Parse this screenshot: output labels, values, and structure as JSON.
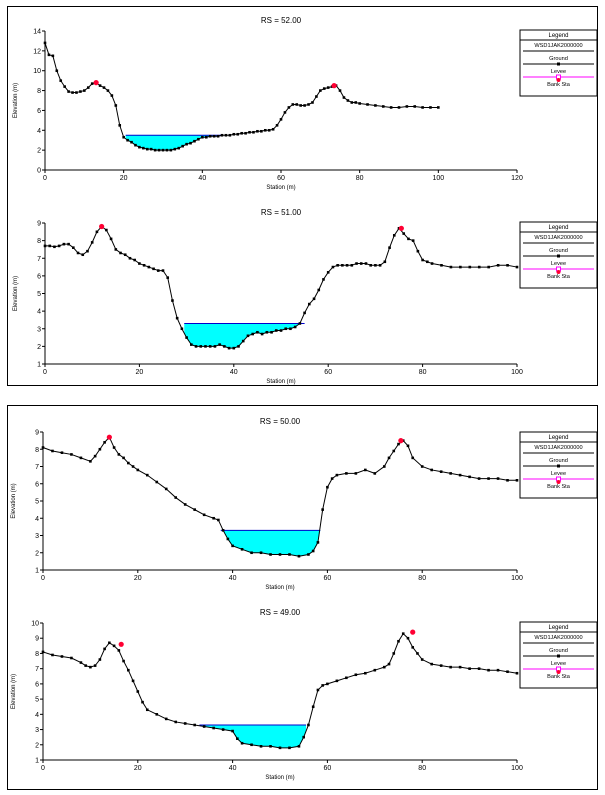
{
  "chart_data": [
    {
      "type": "line",
      "title": "RS = 52.00",
      "xlabel": "Station (m)",
      "ylabel": "Elevation (m)",
      "xlim": [
        0,
        120
      ],
      "ylim": [
        0,
        14
      ],
      "xticks": [
        0,
        20,
        40,
        60,
        80,
        100,
        120
      ],
      "yticks": [
        0,
        2,
        4,
        6,
        8,
        10,
        12,
        14
      ],
      "ground": {
        "x": [
          0,
          1,
          2,
          3,
          4,
          5,
          6,
          7,
          8,
          9,
          10,
          11,
          12,
          13,
          14,
          15,
          16,
          17,
          18,
          19,
          20,
          21,
          22,
          23,
          24,
          25,
          26,
          27,
          28,
          29,
          30,
          31,
          32,
          33,
          34,
          35,
          36,
          37,
          38,
          39,
          40,
          41,
          42,
          43,
          44,
          45,
          46,
          47,
          48,
          49,
          50,
          51,
          52,
          53,
          54,
          55,
          56,
          57,
          58,
          59,
          60,
          61,
          62,
          63,
          64,
          65,
          66,
          67,
          68,
          69,
          70,
          71,
          72,
          73,
          74,
          75,
          76,
          77,
          78,
          79,
          80,
          82,
          84,
          86,
          88,
          90,
          92,
          94,
          96,
          98,
          100
        ],
        "y": [
          12.8,
          11.6,
          11.5,
          10.0,
          9.0,
          8.4,
          7.9,
          7.8,
          7.8,
          7.9,
          8.0,
          8.3,
          8.7,
          8.8,
          8.5,
          8.3,
          8.0,
          7.5,
          6.5,
          4.5,
          3.3,
          3.0,
          2.8,
          2.5,
          2.3,
          2.2,
          2.1,
          2.1,
          2.0,
          2.0,
          2.0,
          2.0,
          2.0,
          2.1,
          2.2,
          2.4,
          2.6,
          2.7,
          2.9,
          3.1,
          3.3,
          3.3,
          3.4,
          3.4,
          3.4,
          3.5,
          3.5,
          3.5,
          3.6,
          3.6,
          3.7,
          3.7,
          3.8,
          3.8,
          3.9,
          3.9,
          4.0,
          4.0,
          4.1,
          4.5,
          5.1,
          5.8,
          6.3,
          6.6,
          6.6,
          6.5,
          6.5,
          6.6,
          6.8,
          7.4,
          8.0,
          8.2,
          8.3,
          8.4,
          8.5,
          8.0,
          7.3,
          7.0,
          6.8,
          6.8,
          6.7,
          6.6,
          6.5,
          6.4,
          6.3,
          6.3,
          6.4,
          6.4,
          6.3,
          6.3,
          6.3
        ]
      },
      "water_surface": {
        "elevation": 3.5,
        "from": 20.5,
        "to": 45
      },
      "bank_stations": [
        [
          13,
          8.8
        ],
        [
          73.5,
          8.5
        ]
      ],
      "legend": {
        "title": "Legend",
        "items": [
          {
            "label": "WSD1JAK2000000",
            "type": "ws"
          },
          {
            "label": "Ground",
            "type": "ground"
          },
          {
            "label": "Levee",
            "type": "levee"
          },
          {
            "label": "Bank Sta",
            "type": "bank"
          }
        ]
      }
    },
    {
      "type": "line",
      "title": "RS = 51.00",
      "xlabel": "Station (m)",
      "ylabel": "Elevation (m)",
      "xlim": [
        0,
        100
      ],
      "ylim": [
        1,
        9
      ],
      "xticks": [
        0,
        20,
        40,
        60,
        80,
        100
      ],
      "yticks": [
        1,
        2,
        3,
        4,
        5,
        6,
        7,
        8,
        9
      ],
      "ground": {
        "x": [
          0,
          1,
          2,
          3,
          4,
          5,
          6,
          7,
          8,
          9,
          10,
          11,
          12,
          13,
          14,
          15,
          16,
          17,
          18,
          19,
          20,
          21,
          22,
          23,
          24,
          25,
          26,
          27,
          28,
          29,
          30,
          31,
          32,
          33,
          34,
          35,
          36,
          37,
          38,
          39,
          40,
          41,
          42,
          43,
          44,
          45,
          46,
          47,
          48,
          49,
          50,
          51,
          52,
          53,
          54,
          55,
          56,
          57,
          58,
          59,
          60,
          61,
          62,
          63,
          64,
          65,
          66,
          67,
          68,
          69,
          70,
          71,
          72,
          73,
          74,
          75,
          76,
          77,
          78,
          79,
          80,
          81,
          82,
          84,
          86,
          88,
          90,
          92,
          94,
          96,
          98,
          100
        ],
        "y": [
          7.7,
          7.7,
          7.65,
          7.7,
          7.8,
          7.8,
          7.6,
          7.3,
          7.2,
          7.4,
          7.9,
          8.5,
          8.8,
          8.6,
          8.1,
          7.5,
          7.3,
          7.2,
          7.0,
          6.9,
          6.7,
          6.6,
          6.5,
          6.4,
          6.3,
          6.3,
          5.9,
          4.6,
          3.6,
          3.0,
          2.5,
          2.1,
          2.0,
          2.0,
          2.0,
          2.0,
          2.0,
          2.1,
          2.0,
          1.9,
          1.9,
          2.0,
          2.3,
          2.6,
          2.7,
          2.8,
          2.7,
          2.8,
          2.8,
          2.9,
          2.9,
          3.0,
          3.0,
          3.1,
          3.3,
          3.9,
          4.4,
          4.7,
          5.2,
          5.8,
          6.2,
          6.5,
          6.6,
          6.6,
          6.6,
          6.6,
          6.7,
          6.7,
          6.7,
          6.6,
          6.6,
          6.6,
          6.8,
          7.6,
          8.3,
          8.7,
          8.4,
          8.1,
          8.0,
          7.4,
          6.9,
          6.8,
          6.7,
          6.6,
          6.5,
          6.5,
          6.5,
          6.5,
          6.5,
          6.6,
          6.6,
          6.5
        ]
      },
      "water_surface": {
        "elevation": 3.3,
        "from": 29.5,
        "to": 55
      },
      "bank_stations": [
        [
          12,
          8.8
        ],
        [
          75.5,
          8.7
        ]
      ],
      "legend": {
        "title": "Legend",
        "items": [
          {
            "label": "WSD1JAK2000000",
            "type": "ws"
          },
          {
            "label": "Ground",
            "type": "ground"
          },
          {
            "label": "Levee",
            "type": "levee"
          },
          {
            "label": "Bank Sta",
            "type": "bank"
          }
        ]
      }
    },
    {
      "type": "line",
      "title": "RS = 50.00",
      "xlabel": "Station (m)",
      "ylabel": "Elevation (m)",
      "xlim": [
        0,
        100
      ],
      "ylim": [
        1,
        9
      ],
      "xticks": [
        0,
        20,
        40,
        60,
        80,
        100
      ],
      "yticks": [
        1,
        2,
        3,
        4,
        5,
        6,
        7,
        8,
        9
      ],
      "ground": {
        "x": [
          0,
          2,
          4,
          6,
          8,
          10,
          11,
          12,
          13,
          14,
          15,
          16,
          17,
          18,
          19,
          20,
          22,
          24,
          26,
          28,
          30,
          32,
          34,
          36,
          37,
          38,
          39,
          40,
          42,
          44,
          46,
          48,
          50,
          52,
          54,
          56,
          57,
          58,
          59,
          60,
          61,
          62,
          64,
          66,
          68,
          70,
          72,
          73,
          74,
          75,
          76,
          77,
          78,
          80,
          82,
          84,
          86,
          88,
          90,
          92,
          94,
          96,
          98,
          100
        ],
        "y": [
          8.1,
          7.9,
          7.8,
          7.7,
          7.5,
          7.3,
          7.6,
          8.0,
          8.4,
          8.7,
          8.1,
          7.7,
          7.5,
          7.2,
          7.0,
          6.8,
          6.5,
          6.1,
          5.7,
          5.2,
          4.8,
          4.5,
          4.2,
          4.0,
          3.9,
          3.3,
          2.8,
          2.4,
          2.2,
          2.0,
          2.0,
          1.9,
          1.9,
          1.9,
          1.8,
          1.9,
          2.1,
          2.6,
          4.5,
          5.8,
          6.3,
          6.5,
          6.6,
          6.6,
          6.8,
          6.6,
          7.0,
          7.5,
          7.9,
          8.3,
          8.5,
          8.2,
          7.5,
          7.0,
          6.8,
          6.7,
          6.6,
          6.5,
          6.4,
          6.3,
          6.3,
          6.3,
          6.2,
          6.2
        ]
      },
      "water_surface": {
        "elevation": 3.3,
        "from": 37.5,
        "to": 58.5
      },
      "bank_stations": [
        [
          14,
          8.7
        ],
        [
          75.5,
          8.5
        ]
      ],
      "legend": {
        "title": "Legend",
        "items": [
          {
            "label": "WSD1JAK2000000",
            "type": "ws"
          },
          {
            "label": "Ground",
            "type": "ground"
          },
          {
            "label": "Levee",
            "type": "levee"
          },
          {
            "label": "Bank Sta",
            "type": "bank"
          }
        ]
      }
    },
    {
      "type": "line",
      "title": "RS = 49.00",
      "xlabel": "Station (m)",
      "ylabel": "Elevation (m)",
      "xlim": [
        0,
        100
      ],
      "ylim": [
        1,
        10
      ],
      "xticks": [
        0,
        20,
        40,
        60,
        80,
        100
      ],
      "yticks": [
        1,
        2,
        3,
        4,
        5,
        6,
        7,
        8,
        9,
        10
      ],
      "ground": {
        "x": [
          0,
          2,
          4,
          6,
          8,
          9,
          10,
          11,
          12,
          13,
          14,
          15,
          16,
          17,
          18,
          19,
          20,
          21,
          22,
          24,
          26,
          28,
          30,
          32,
          34,
          36,
          38,
          40,
          41,
          42,
          44,
          46,
          48,
          50,
          52,
          54,
          55,
          56,
          57,
          58,
          59,
          60,
          62,
          64,
          66,
          68,
          70,
          72,
          73,
          74,
          75,
          76,
          77,
          78,
          79,
          80,
          82,
          84,
          86,
          88,
          90,
          92,
          94,
          96,
          98,
          100
        ],
        "y": [
          8.1,
          7.9,
          7.8,
          7.7,
          7.4,
          7.2,
          7.1,
          7.2,
          7.6,
          8.3,
          8.7,
          8.5,
          8.2,
          7.5,
          6.9,
          6.2,
          5.5,
          4.8,
          4.3,
          4.0,
          3.7,
          3.5,
          3.4,
          3.3,
          3.2,
          3.1,
          3.0,
          2.9,
          2.4,
          2.1,
          2.0,
          1.9,
          1.9,
          1.8,
          1.8,
          1.9,
          2.5,
          3.3,
          4.5,
          5.6,
          5.9,
          6.0,
          6.2,
          6.4,
          6.6,
          6.7,
          6.9,
          7.1,
          7.3,
          8.0,
          8.8,
          9.3,
          9.0,
          8.4,
          8.0,
          7.6,
          7.3,
          7.2,
          7.1,
          7.1,
          7.0,
          7.0,
          6.9,
          6.9,
          6.8,
          6.7
        ]
      },
      "water_surface": {
        "elevation": 3.3,
        "from": 33,
        "to": 55.5
      },
      "bank_stations": [
        [
          16.5,
          8.6
        ],
        [
          78,
          9.4
        ]
      ],
      "legend": {
        "title": "Legend",
        "items": [
          {
            "label": "WSD1JAK2000000",
            "type": "ws"
          },
          {
            "label": "Ground",
            "type": "ground"
          },
          {
            "label": "Levee",
            "type": "levee"
          },
          {
            "label": "Bank Sta",
            "type": "bank"
          }
        ]
      }
    }
  ],
  "colors": {
    "ground": "#000000",
    "water_fill": "#00ffff",
    "water_line": "#0000cc",
    "levee": "#ff00ff",
    "bank": "#ff0033"
  }
}
